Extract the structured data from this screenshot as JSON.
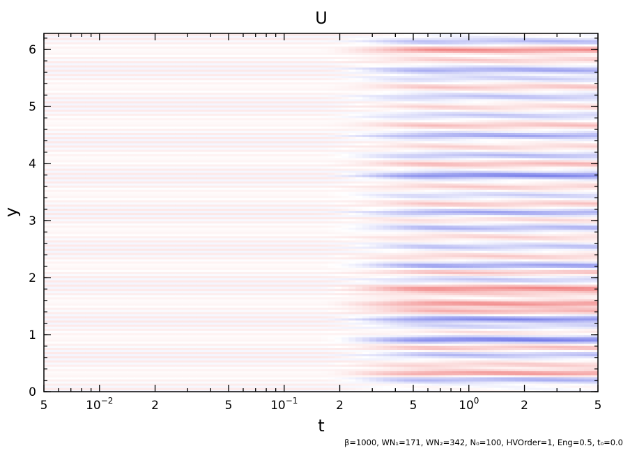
{
  "chart_data": {
    "type": "heatmap",
    "title": "U",
    "xlabel": "t",
    "ylabel": "y",
    "x_scale": "log",
    "xlim": [
      0.005,
      5
    ],
    "ylim": [
      0,
      6.283
    ],
    "x_ticks": [
      {
        "value": 0.005,
        "label": "5"
      },
      {
        "value": 0.01,
        "label": "10",
        "exp": "−2"
      },
      {
        "value": 0.02,
        "label": "2"
      },
      {
        "value": 0.05,
        "label": "5"
      },
      {
        "value": 0.1,
        "label": "10",
        "exp": "−1"
      },
      {
        "value": 0.2,
        "label": "2"
      },
      {
        "value": 0.5,
        "label": "5"
      },
      {
        "value": 1,
        "label": "10",
        "exp": "0"
      },
      {
        "value": 2,
        "label": "2"
      },
      {
        "value": 5,
        "label": "5"
      }
    ],
    "x_minor_ticks": [
      0.006,
      0.007,
      0.008,
      0.009,
      0.03,
      0.04,
      0.06,
      0.07,
      0.08,
      0.09,
      0.3,
      0.4,
      0.6,
      0.7,
      0.8,
      0.9,
      3,
      4
    ],
    "y_ticks": [
      {
        "value": 0,
        "label": "0"
      },
      {
        "value": 1,
        "label": "1"
      },
      {
        "value": 2,
        "label": "2"
      },
      {
        "value": 3,
        "label": "3"
      },
      {
        "value": 4,
        "label": "4"
      },
      {
        "value": 5,
        "label": "5"
      },
      {
        "value": 6,
        "label": "6"
      }
    ],
    "y_minor_step": 0.2,
    "colormap": {
      "negative": "#6b72e8",
      "zero": "#ffffff",
      "positive": "#f07a7a"
    },
    "field_description": "Horizontal band structure in y; fine low-amplitude alternating stripes for t < 0.1, developing into stronger red/blue zonal bands for t > 0.3",
    "bands": [
      {
        "y": 0.22,
        "value": -0.55
      },
      {
        "y": 0.33,
        "value": 0.75
      },
      {
        "y": 0.48,
        "value": 0.35
      },
      {
        "y": 0.65,
        "value": -0.45
      },
      {
        "y": 0.78,
        "value": 0.45
      },
      {
        "y": 0.92,
        "value": -0.9
      },
      {
        "y": 1.05,
        "value": 0.2
      },
      {
        "y": 1.15,
        "value": -0.3
      },
      {
        "y": 1.28,
        "value": -0.8
      },
      {
        "y": 1.42,
        "value": 0.55
      },
      {
        "y": 1.55,
        "value": 0.8
      },
      {
        "y": 1.72,
        "value": 0.3
      },
      {
        "y": 1.82,
        "value": 0.85
      },
      {
        "y": 1.97,
        "value": -0.35
      },
      {
        "y": 2.1,
        "value": 0.45
      },
      {
        "y": 2.22,
        "value": -0.65
      },
      {
        "y": 2.38,
        "value": 0.35
      },
      {
        "y": 2.55,
        "value": -0.4
      },
      {
        "y": 2.72,
        "value": 0.3
      },
      {
        "y": 2.88,
        "value": -0.5
      },
      {
        "y": 3.02,
        "value": 0.25
      },
      {
        "y": 3.15,
        "value": -0.6
      },
      {
        "y": 3.3,
        "value": 0.4
      },
      {
        "y": 3.45,
        "value": -0.3
      },
      {
        "y": 3.6,
        "value": 0.35
      },
      {
        "y": 3.8,
        "value": -0.85
      },
      {
        "y": 4.0,
        "value": 0.5
      },
      {
        "y": 4.15,
        "value": -0.45
      },
      {
        "y": 4.3,
        "value": 0.3
      },
      {
        "y": 4.5,
        "value": -0.6
      },
      {
        "y": 4.68,
        "value": 0.45
      },
      {
        "y": 4.85,
        "value": -0.35
      },
      {
        "y": 5.0,
        "value": 0.3
      },
      {
        "y": 5.18,
        "value": -0.4
      },
      {
        "y": 5.35,
        "value": 0.4
      },
      {
        "y": 5.5,
        "value": -0.3
      },
      {
        "y": 5.65,
        "value": -0.6
      },
      {
        "y": 5.82,
        "value": 0.35
      },
      {
        "y": 6.0,
        "value": 0.85
      },
      {
        "y": 6.15,
        "value": -0.45
      }
    ],
    "growth": {
      "quiet_until_t": 0.15,
      "full_from_t": 0.7,
      "early_stripe_amplitude": 0.12
    }
  },
  "footer": {
    "text": "β=1000, WN₁=171, WN₂=342, N₀=100, HVOrder=1, Eng=0.5, t₀=0.0"
  }
}
